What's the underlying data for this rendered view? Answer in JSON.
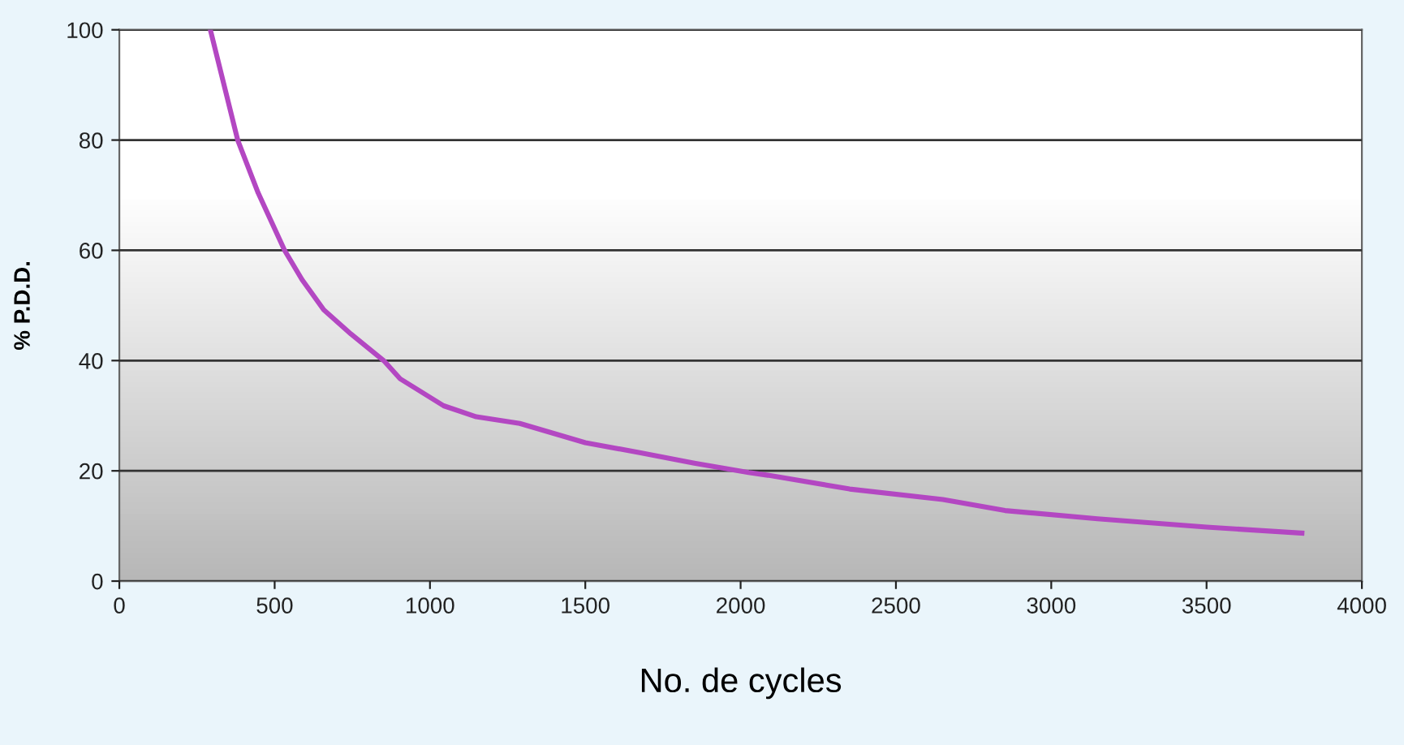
{
  "chart_data": {
    "type": "line",
    "xlabel": "No. de cycles",
    "ylabel": "% P.D.D.",
    "xlim": [
      0,
      4000
    ],
    "xticks": [
      0,
      500,
      1000,
      1500,
      2000,
      2500,
      3000,
      3500,
      4000
    ],
    "ylim": [
      0,
      100
    ],
    "yticks": [
      0,
      20,
      40,
      60,
      80,
      100
    ],
    "grid": "y",
    "marker": "none",
    "line_style": "solid",
    "series": [
      {
        "color": "#b347c2",
        "x": [
          293,
          381,
          447,
          532,
          588,
          658,
          746,
          851,
          904,
          1044,
          1149,
          1289,
          1500,
          1675,
          1851,
          2026,
          2088,
          2351,
          2651,
          2851,
          3149,
          3500,
          3807
        ],
        "values": [
          100,
          80,
          70.4,
          60,
          54.7,
          49.2,
          44.8,
          40,
          36.7,
          31.8,
          29.8,
          28.6,
          25.1,
          23.3,
          21.4,
          19.7,
          19.2,
          16.7,
          14.8,
          12.8,
          11.3,
          9.8,
          8.7
        ]
      }
    ]
  }
}
